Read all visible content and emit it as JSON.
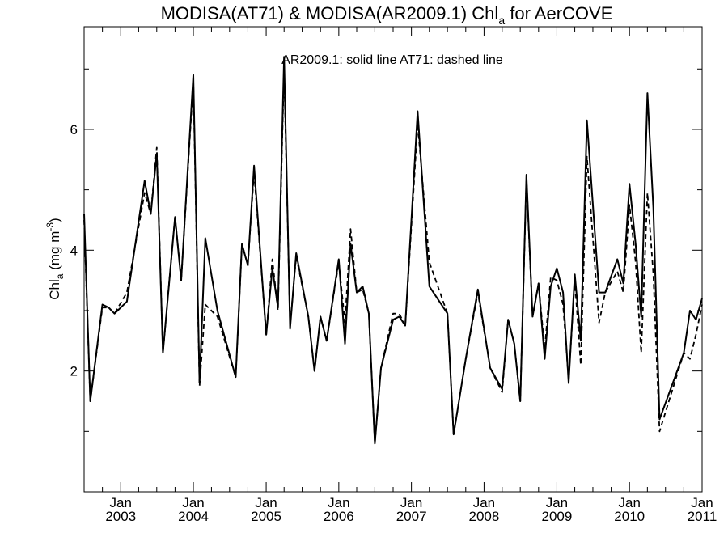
{
  "chart_data": {
    "type": "line",
    "title": "MODISA(AT71) & MODISA(AR2009.1)  Chl",
    "title_subscript": "a",
    "title_suffix": " for AerCOVE",
    "annotation": "AR2009.1: solid line   AT71: dashed line",
    "ylabel": "Chl",
    "ylabel_subscript": "a",
    "ylabel_units_prefix": " (mg m",
    "ylabel_units_superscript": "-3",
    "ylabel_units_suffix": ")",
    "xlim": [
      "2002-07-01",
      "2011-01-01"
    ],
    "ylim": [
      0,
      7.7
    ],
    "y_ticks": [
      2,
      4,
      6
    ],
    "y_minor_step": 1,
    "x_ticks": [
      {
        "month": "Jan",
        "year": "2003",
        "date": "2003-01-01"
      },
      {
        "month": "Jan",
        "year": "2004",
        "date": "2004-01-01"
      },
      {
        "month": "Jan",
        "year": "2005",
        "date": "2005-01-01"
      },
      {
        "month": "Jan",
        "year": "2006",
        "date": "2006-01-01"
      },
      {
        "month": "Jan",
        "year": "2007",
        "date": "2007-01-01"
      },
      {
        "month": "Jan",
        "year": "2008",
        "date": "2008-01-01"
      },
      {
        "month": "Jan",
        "year": "2009",
        "date": "2009-01-01"
      },
      {
        "month": "Jan",
        "year": "2010",
        "date": "2010-01-01"
      },
      {
        "month": "Jan",
        "year": "2011",
        "date": "2011-01-01"
      }
    ],
    "series": [
      {
        "name": "AR2009.1",
        "style": "solid",
        "color": "#000000",
        "points": [
          [
            "2002-07-01",
            4.6
          ],
          [
            "2002-08-01",
            1.5
          ],
          [
            "2002-10-01",
            3.1
          ],
          [
            "2002-11-01",
            3.05
          ],
          [
            "2002-12-01",
            2.95
          ],
          [
            "2003-02-01",
            3.15
          ],
          [
            "2003-05-01",
            5.15
          ],
          [
            "2003-06-01",
            4.6
          ],
          [
            "2003-07-01",
            5.6
          ],
          [
            "2003-08-01",
            2.3
          ],
          [
            "2003-10-01",
            4.55
          ],
          [
            "2003-11-01",
            3.5
          ],
          [
            "2004-01-01",
            6.9
          ],
          [
            "2004-02-01",
            1.8
          ],
          [
            "2004-03-01",
            4.2
          ],
          [
            "2004-05-01",
            3.0
          ],
          [
            "2004-08-01",
            1.9
          ],
          [
            "2004-09-01",
            4.1
          ],
          [
            "2004-10-01",
            3.75
          ],
          [
            "2004-11-01",
            5.4
          ],
          [
            "2005-01-01",
            2.6
          ],
          [
            "2005-02-01",
            3.7
          ],
          [
            "2005-03-01",
            3.05
          ],
          [
            "2005-04-01",
            7.2
          ],
          [
            "2005-05-01",
            2.7
          ],
          [
            "2005-06-01",
            3.95
          ],
          [
            "2005-08-01",
            2.9
          ],
          [
            "2005-09-01",
            2.0
          ],
          [
            "2005-10-01",
            2.9
          ],
          [
            "2005-11-01",
            2.5
          ],
          [
            "2006-01-01",
            3.85
          ],
          [
            "2006-02-01",
            2.45
          ],
          [
            "2006-03-01",
            4.1
          ],
          [
            "2006-04-01",
            3.3
          ],
          [
            "2006-05-01",
            3.4
          ],
          [
            "2006-06-01",
            2.95
          ],
          [
            "2006-07-01",
            0.8
          ],
          [
            "2006-08-01",
            2.05
          ],
          [
            "2006-10-01",
            2.85
          ],
          [
            "2006-11-01",
            2.9
          ],
          [
            "2006-12-01",
            2.75
          ],
          [
            "2007-01-01",
            4.5
          ],
          [
            "2007-02-01",
            6.3
          ],
          [
            "2007-04-01",
            3.4
          ],
          [
            "2007-07-01",
            2.95
          ],
          [
            "2007-08-01",
            0.95
          ],
          [
            "2007-10-01",
            2.2
          ],
          [
            "2007-12-01",
            3.35
          ],
          [
            "2008-02-01",
            2.05
          ],
          [
            "2008-04-01",
            1.7
          ],
          [
            "2008-05-01",
            2.85
          ],
          [
            "2008-06-01",
            2.45
          ],
          [
            "2008-07-01",
            1.5
          ],
          [
            "2008-08-01",
            5.25
          ],
          [
            "2008-09-01",
            2.9
          ],
          [
            "2008-10-01",
            3.45
          ],
          [
            "2008-11-01",
            2.2
          ],
          [
            "2008-12-01",
            3.4
          ],
          [
            "2009-01-01",
            3.7
          ],
          [
            "2009-02-01",
            3.3
          ],
          [
            "2009-03-01",
            1.8
          ],
          [
            "2009-04-01",
            3.6
          ],
          [
            "2009-05-01",
            2.5
          ],
          [
            "2009-06-01",
            6.15
          ],
          [
            "2009-08-01",
            3.3
          ],
          [
            "2009-09-01",
            3.3
          ],
          [
            "2009-11-01",
            3.85
          ],
          [
            "2009-12-01",
            3.45
          ],
          [
            "2010-01-01",
            5.1
          ],
          [
            "2010-02-01",
            4.1
          ],
          [
            "2010-03-01",
            2.9
          ],
          [
            "2010-04-01",
            6.6
          ],
          [
            "2010-05-01",
            4.7
          ],
          [
            "2010-06-01",
            1.2
          ],
          [
            "2010-10-01",
            2.3
          ],
          [
            "2010-11-01",
            3.0
          ],
          [
            "2010-12-01",
            2.85
          ],
          [
            "2011-01-01",
            3.2
          ]
        ]
      },
      {
        "name": "AT71",
        "style": "dashed",
        "color": "#000000",
        "points": [
          [
            "2002-07-01",
            4.5
          ],
          [
            "2002-08-01",
            1.5
          ],
          [
            "2002-10-01",
            3.05
          ],
          [
            "2002-11-01",
            3.05
          ],
          [
            "2002-12-01",
            2.95
          ],
          [
            "2003-02-01",
            3.3
          ],
          [
            "2003-05-01",
            4.95
          ],
          [
            "2003-06-01",
            4.6
          ],
          [
            "2003-07-01",
            5.7
          ],
          [
            "2003-08-01",
            2.3
          ],
          [
            "2003-10-01",
            4.55
          ],
          [
            "2003-11-01",
            3.5
          ],
          [
            "2004-01-01",
            6.8
          ],
          [
            "2004-02-01",
            1.75
          ],
          [
            "2004-03-01",
            3.1
          ],
          [
            "2004-05-01",
            2.9
          ],
          [
            "2004-08-01",
            1.9
          ],
          [
            "2004-09-01",
            4.1
          ],
          [
            "2004-10-01",
            3.75
          ],
          [
            "2004-11-01",
            5.3
          ],
          [
            "2005-01-01",
            2.6
          ],
          [
            "2005-02-01",
            3.85
          ],
          [
            "2005-03-01",
            3.0
          ],
          [
            "2005-04-01",
            7.0
          ],
          [
            "2005-05-01",
            2.75
          ],
          [
            "2005-06-01",
            3.9
          ],
          [
            "2005-08-01",
            2.9
          ],
          [
            "2005-09-01",
            2.0
          ],
          [
            "2005-10-01",
            2.9
          ],
          [
            "2005-11-01",
            2.5
          ],
          [
            "2006-01-01",
            3.8
          ],
          [
            "2006-02-01",
            2.8
          ],
          [
            "2006-03-01",
            4.35
          ],
          [
            "2006-04-01",
            3.3
          ],
          [
            "2006-05-01",
            3.35
          ],
          [
            "2006-06-01",
            2.95
          ],
          [
            "2006-07-01",
            0.8
          ],
          [
            "2006-08-01",
            2.05
          ],
          [
            "2006-10-01",
            2.95
          ],
          [
            "2006-11-01",
            2.95
          ],
          [
            "2006-12-01",
            2.75
          ],
          [
            "2007-01-01",
            4.4
          ],
          [
            "2007-02-01",
            6.1
          ],
          [
            "2007-04-01",
            3.8
          ],
          [
            "2007-07-01",
            2.95
          ],
          [
            "2007-08-01",
            0.95
          ],
          [
            "2007-10-01",
            2.2
          ],
          [
            "2007-12-01",
            3.3
          ],
          [
            "2008-02-01",
            2.05
          ],
          [
            "2008-04-01",
            1.65
          ],
          [
            "2008-05-01",
            2.85
          ],
          [
            "2008-06-01",
            2.45
          ],
          [
            "2008-07-01",
            1.5
          ],
          [
            "2008-08-01",
            5.2
          ],
          [
            "2008-09-01",
            2.9
          ],
          [
            "2008-10-01",
            3.45
          ],
          [
            "2008-11-01",
            2.35
          ],
          [
            "2008-12-01",
            3.55
          ],
          [
            "2009-01-01",
            3.5
          ],
          [
            "2009-02-01",
            3.1
          ],
          [
            "2009-03-01",
            1.85
          ],
          [
            "2009-04-01",
            3.5
          ],
          [
            "2009-05-01",
            2.1
          ],
          [
            "2009-06-01",
            5.55
          ],
          [
            "2009-08-01",
            2.8
          ],
          [
            "2009-09-01",
            3.3
          ],
          [
            "2009-11-01",
            3.65
          ],
          [
            "2009-12-01",
            3.3
          ],
          [
            "2010-01-01",
            4.75
          ],
          [
            "2010-02-01",
            3.8
          ],
          [
            "2010-03-01",
            2.3
          ],
          [
            "2010-04-01",
            4.95
          ],
          [
            "2010-05-01",
            3.6
          ],
          [
            "2010-06-01",
            1.0
          ],
          [
            "2010-10-01",
            2.3
          ],
          [
            "2010-11-01",
            2.2
          ],
          [
            "2010-12-01",
            2.6
          ],
          [
            "2011-01-01",
            3.1
          ]
        ]
      }
    ]
  }
}
